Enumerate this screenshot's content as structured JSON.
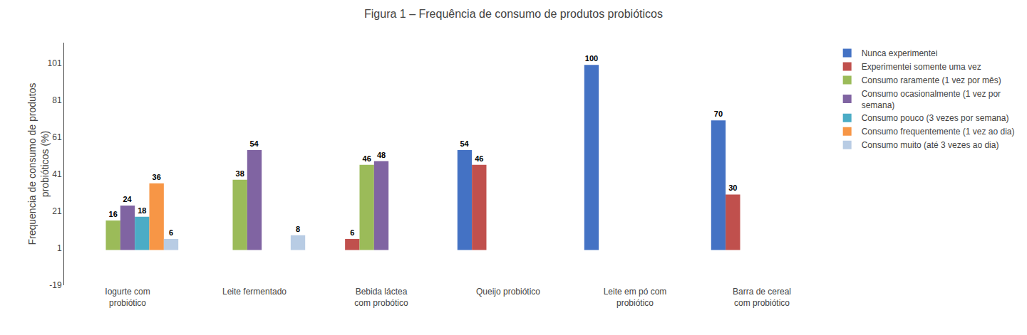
{
  "chart_data": {
    "type": "bar",
    "title": "Figura 1 – Frequência de consumo de produtos probióticos",
    "ylabel": "Frequencia de consumo de produtos\nprobióticos (%)",
    "categories": [
      "Iogurte com\nprobiótico",
      "Leite fermentado",
      "Bebida láctea\ncom probótico",
      "Queijo probiótico",
      "Leite em pó com\nprobiótico",
      "Barra de cereal\ncom probiótico"
    ],
    "series": [
      {
        "name": "Nunca experimentei",
        "color": "#4472C4",
        "values": [
          null,
          null,
          null,
          54,
          100,
          70
        ]
      },
      {
        "name": "Experimentei somente uma vez",
        "color": "#C0504D",
        "values": [
          null,
          null,
          6,
          46,
          null,
          30
        ]
      },
      {
        "name": "Consumo raramente (1 vez por mês)",
        "color": "#9BBB59",
        "values": [
          16,
          38,
          46,
          null,
          null,
          null
        ]
      },
      {
        "name": "Consumo ocasionalmente (1 vez por\nsemana)",
        "color": "#8064A2",
        "values": [
          24,
          54,
          48,
          null,
          null,
          null
        ]
      },
      {
        "name": "Consumo pouco (3 vezes por semana)",
        "color": "#4BACC6",
        "values": [
          18,
          null,
          null,
          null,
          null,
          null
        ]
      },
      {
        "name": "Consumo frequentemente (1 vez ao dia)",
        "color": "#F79646",
        "values": [
          36,
          null,
          null,
          null,
          null,
          null
        ]
      },
      {
        "name": "Consumo muito (até 3 vezes ao dia)",
        "color": "#B8CCE4",
        "values": [
          6,
          8,
          null,
          null,
          null,
          null
        ]
      }
    ],
    "ylim": [
      -19,
      112
    ],
    "yticks": [
      -19,
      1,
      21,
      41,
      61,
      81,
      101
    ],
    "grid": false,
    "legend": "right",
    "data_labels": true
  }
}
